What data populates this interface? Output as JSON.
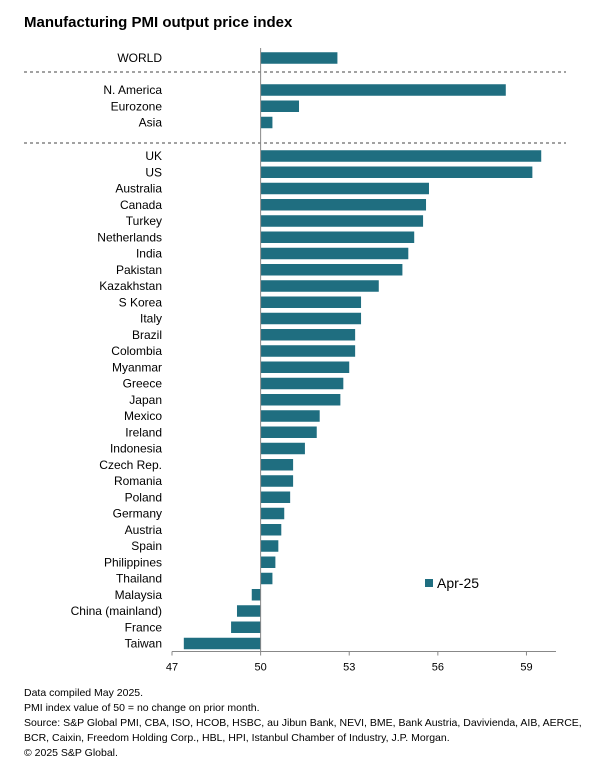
{
  "title": "Manufacturing PMI output price index",
  "chart_data": {
    "type": "bar",
    "orientation": "horizontal",
    "title": "Manufacturing PMI output price index",
    "xlim": [
      47,
      60
    ],
    "xticks": [
      47,
      50,
      53,
      56,
      59
    ],
    "reference_value": 50,
    "grid": false,
    "legend_position": "bottom-right",
    "bar_color": "#1f6e80",
    "series": [
      {
        "name": "Apr-25",
        "groups": [
          {
            "categories": [
              "WORLD"
            ],
            "values": [
              52.6
            ]
          },
          {
            "categories": [
              "N. America",
              "Eurozone",
              "Asia"
            ],
            "values": [
              58.3,
              51.3,
              50.4
            ]
          },
          {
            "categories": [
              "UK",
              "US",
              "Australia",
              "Canada",
              "Turkey",
              "Netherlands",
              "India",
              "Pakistan",
              "Kazakhstan",
              "S Korea",
              "Italy",
              "Brazil",
              "Colombia",
              "Myanmar",
              "Greece",
              "Japan",
              "Mexico",
              "Ireland",
              "Indonesia",
              "Czech Rep.",
              "Romania",
              "Poland",
              "Germany",
              "Austria",
              "Spain",
              "Philippines",
              "Thailand",
              "Malaysia",
              "China (mainland)",
              "France",
              "Taiwan"
            ],
            "values": [
              59.5,
              59.2,
              55.7,
              55.6,
              55.5,
              55.2,
              55.0,
              54.8,
              54.0,
              53.4,
              53.4,
              53.2,
              53.2,
              53.0,
              52.8,
              52.7,
              52.0,
              51.9,
              51.5,
              51.1,
              51.1,
              51.0,
              50.8,
              50.7,
              50.6,
              50.5,
              50.4,
              49.7,
              49.2,
              49.0,
              47.4
            ]
          }
        ]
      }
    ]
  },
  "notes": {
    "compiled": "Data compiled May 2025.",
    "pmi_note": "PMI index value of 50 = no change on prior month.",
    "source": "Source: S&P Global PMI, CBA, ISO, HCOB, HSBC, au Jibun Bank, NEVI, BME, Bank Austria, Davivienda, AIB, AERCE, BCR, Caixin, Freedom Holding Corp., HBL, HPI, Istanbul Chamber of Industry, J.P. Morgan.",
    "copyright": "© 2025 S&P Global."
  }
}
